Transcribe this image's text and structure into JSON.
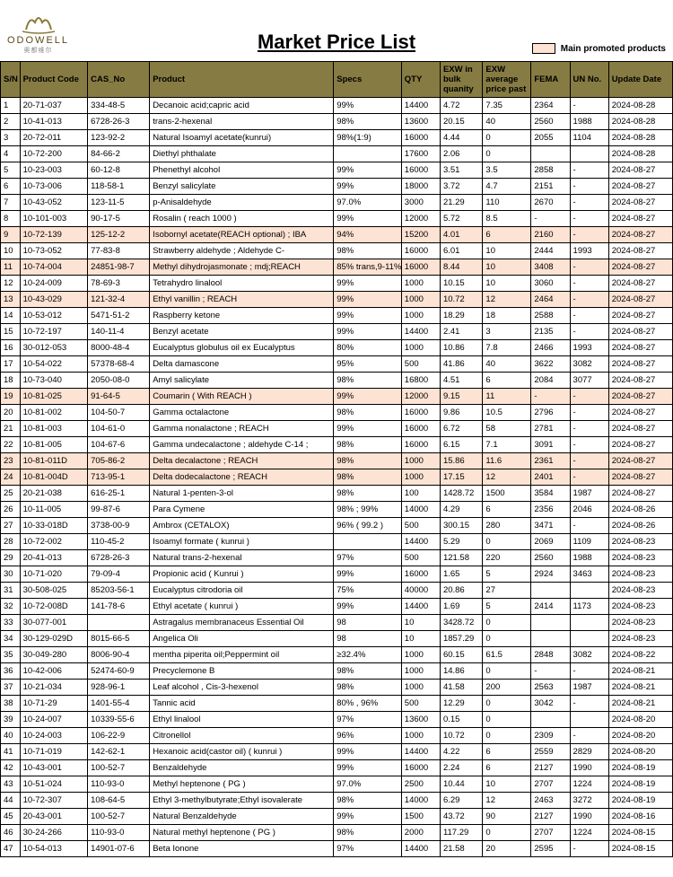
{
  "brand": {
    "name": "ODOWELL",
    "sub": "奥都维尔"
  },
  "page": {
    "title": "Market Price List",
    "legend": "Main promoted products"
  },
  "colors": {
    "header_bg": "#867b42",
    "promoted_bg": "#fde3d3",
    "border": "#000000"
  },
  "columns": [
    "S/N",
    "Product Code",
    "CAS_No",
    "Product",
    "Specs",
    "QTY",
    "EXW in bulk quanity",
    "EXW average price past",
    "FEMA",
    "UN No.",
    "Update Date"
  ],
  "rows": [
    {
      "sn": "1",
      "code": "20-71-037",
      "cas": "334-48-5",
      "prod": "Decanoic acid;capric acid",
      "spec": "99%",
      "qty": "14400",
      "exwb": "4.72",
      "exwa": "7.35",
      "fema": "2364",
      "un": "-",
      "upd": "2024-08-28",
      "hl": false
    },
    {
      "sn": "2",
      "code": "10-41-013",
      "cas": "6728-26-3",
      "prod": "trans-2-hexenal",
      "spec": "98%",
      "qty": "13600",
      "exwb": "20.15",
      "exwa": "40",
      "fema": "2560",
      "un": "1988",
      "upd": "2024-08-28",
      "hl": false
    },
    {
      "sn": "3",
      "code": "20-72-011",
      "cas": "123-92-2",
      "prod": "Natural Isoamyl acetate(kunrui)",
      "spec": "98%(1:9)",
      "qty": "16000",
      "exwb": "4.44",
      "exwa": "0",
      "fema": "2055",
      "un": "1104",
      "upd": "2024-08-28",
      "hl": false
    },
    {
      "sn": "4",
      "code": "10-72-200",
      "cas": "84-66-2",
      "prod": "Diethyl phthalate",
      "spec": "",
      "qty": "17600",
      "exwb": "2.06",
      "exwa": "0",
      "fema": "",
      "un": "",
      "upd": "2024-08-28",
      "hl": false
    },
    {
      "sn": "5",
      "code": "10-23-003",
      "cas": "60-12-8",
      "prod": "Phenethyl alcohol",
      "spec": "99%",
      "qty": "16000",
      "exwb": "3.51",
      "exwa": "3.5",
      "fema": "2858",
      "un": "-",
      "upd": "2024-08-27",
      "hl": false
    },
    {
      "sn": "6",
      "code": "10-73-006",
      "cas": "118-58-1",
      "prod": "Benzyl salicylate",
      "spec": "99%",
      "qty": "18000",
      "exwb": "3.72",
      "exwa": "4.7",
      "fema": "2151",
      "un": "-",
      "upd": "2024-08-27",
      "hl": false
    },
    {
      "sn": "7",
      "code": "10-43-052",
      "cas": "123-11-5",
      "prod": "p-Anisaldehyde",
      "spec": "97.0%",
      "qty": "3000",
      "exwb": "21.29",
      "exwa": "110",
      "fema": "2670",
      "un": "-",
      "upd": "2024-08-27",
      "hl": false
    },
    {
      "sn": "8",
      "code": "10-101-003",
      "cas": "90-17-5",
      "prod": "Rosalin ( reach 1000 )",
      "spec": "99%",
      "qty": "12000",
      "exwb": "5.72",
      "exwa": "8.5",
      "fema": "-",
      "un": "-",
      "upd": "2024-08-27",
      "hl": false
    },
    {
      "sn": "9",
      "code": "10-72-139",
      "cas": "125-12-2",
      "prod": "Isobornyl acetate(REACH optional) ; IBA",
      "spec": "94%",
      "qty": "15200",
      "exwb": "4.01",
      "exwa": "6",
      "fema": "2160",
      "un": "-",
      "upd": "2024-08-27",
      "hl": true
    },
    {
      "sn": "10",
      "code": "10-73-052",
      "cas": "77-83-8",
      "prod": "Strawberry aldehyde ; Aldehyde C-",
      "spec": "98%",
      "qty": "16000",
      "exwb": "6.01",
      "exwa": "10",
      "fema": "2444",
      "un": "1993",
      "upd": "2024-08-27",
      "hl": false
    },
    {
      "sn": "11",
      "code": "10-74-004",
      "cas": "24851-98-7",
      "prod": "Methyl dihydrojasmonate ; mdj;REACH",
      "spec": "85% trans,9-11%",
      "qty": "16000",
      "exwb": "8.44",
      "exwa": "10",
      "fema": "3408",
      "un": "-",
      "upd": "2024-08-27",
      "hl": true
    },
    {
      "sn": "12",
      "code": "10-24-009",
      "cas": "78-69-3",
      "prod": "Tetrahydro linalool",
      "spec": "99%",
      "qty": "1000",
      "exwb": "10.15",
      "exwa": "10",
      "fema": "3060",
      "un": "-",
      "upd": "2024-08-27",
      "hl": false
    },
    {
      "sn": "13",
      "code": "10-43-029",
      "cas": "121-32-4",
      "prod": "Ethyl vanillin ; REACH",
      "spec": "99%",
      "qty": "1000",
      "exwb": "10.72",
      "exwa": "12",
      "fema": "2464",
      "un": "-",
      "upd": "2024-08-27",
      "hl": true
    },
    {
      "sn": "14",
      "code": "10-53-012",
      "cas": "5471-51-2",
      "prod": "Raspberry ketone",
      "spec": "99%",
      "qty": "1000",
      "exwb": "18.29",
      "exwa": "18",
      "fema": "2588",
      "un": "-",
      "upd": "2024-08-27",
      "hl": false
    },
    {
      "sn": "15",
      "code": "10-72-197",
      "cas": "140-11-4",
      "prod": "Benzyl acetate",
      "spec": "99%",
      "qty": "14400",
      "exwb": "2.41",
      "exwa": "3",
      "fema": "2135",
      "un": "-",
      "upd": "2024-08-27",
      "hl": false
    },
    {
      "sn": "16",
      "code": "30-012-053",
      "cas": "8000-48-4",
      "prod": "Eucalyptus globulus oil ex Eucalyptus",
      "spec": "80%",
      "qty": "1000",
      "exwb": "10.86",
      "exwa": "7.8",
      "fema": "2466",
      "un": "1993",
      "upd": "2024-08-27",
      "hl": false
    },
    {
      "sn": "17",
      "code": "10-54-022",
      "cas": "57378-68-4",
      "prod": "Delta damascone",
      "spec": "95%",
      "qty": "500",
      "exwb": "41.86",
      "exwa": "40",
      "fema": "3622",
      "un": "3082",
      "upd": "2024-08-27",
      "hl": false
    },
    {
      "sn": "18",
      "code": "10-73-040",
      "cas": "2050-08-0",
      "prod": "Amyl salicylate",
      "spec": "98%",
      "qty": "16800",
      "exwb": "4.51",
      "exwa": "6",
      "fema": "2084",
      "un": "3077",
      "upd": "2024-08-27",
      "hl": false
    },
    {
      "sn": "19",
      "code": "10-81-025",
      "cas": "91-64-5",
      "prod": "Coumarin ( With REACH )",
      "spec": "99%",
      "qty": "12000",
      "exwb": "9.15",
      "exwa": "11",
      "fema": "-",
      "un": "-",
      "upd": "2024-08-27",
      "hl": true
    },
    {
      "sn": "20",
      "code": "10-81-002",
      "cas": "104-50-7",
      "prod": "Gamma octalactone",
      "spec": "98%",
      "qty": "16000",
      "exwb": "9.86",
      "exwa": "10.5",
      "fema": "2796",
      "un": "-",
      "upd": "2024-08-27",
      "hl": false
    },
    {
      "sn": "21",
      "code": "10-81-003",
      "cas": "104-61-0",
      "prod": "Gamma nonalactone ; REACH",
      "spec": "99%",
      "qty": "16000",
      "exwb": "6.72",
      "exwa": "58",
      "fema": "2781",
      "un": "-",
      "upd": "2024-08-27",
      "hl": false
    },
    {
      "sn": "22",
      "code": "10-81-005",
      "cas": "104-67-6",
      "prod": "Gamma undecalactone ; aldehyde C-14 ;",
      "spec": "98%",
      "qty": "16000",
      "exwb": "6.15",
      "exwa": "7.1",
      "fema": "3091",
      "un": "-",
      "upd": "2024-08-27",
      "hl": false
    },
    {
      "sn": "23",
      "code": "10-81-011D",
      "cas": "705-86-2",
      "prod": "Delta decalactone ; REACH",
      "spec": "98%",
      "qty": "1000",
      "exwb": "15.86",
      "exwa": "11.6",
      "fema": "2361",
      "un": "-",
      "upd": "2024-08-27",
      "hl": true
    },
    {
      "sn": "24",
      "code": "10-81-004D",
      "cas": "713-95-1",
      "prod": "Delta dodecalactone ; REACH",
      "spec": "98%",
      "qty": "1000",
      "exwb": "17.15",
      "exwa": "12",
      "fema": "2401",
      "un": "-",
      "upd": "2024-08-27",
      "hl": true
    },
    {
      "sn": "25",
      "code": "20-21-038",
      "cas": "616-25-1",
      "prod": "Natural 1-penten-3-ol",
      "spec": "98%",
      "qty": "100",
      "exwb": "1428.72",
      "exwa": "1500",
      "fema": "3584",
      "un": "1987",
      "upd": "2024-08-27",
      "hl": false
    },
    {
      "sn": "26",
      "code": "10-11-005",
      "cas": "99-87-6",
      "prod": "Para Cymene",
      "spec": "98% ; 99%",
      "qty": "14000",
      "exwb": "4.29",
      "exwa": "6",
      "fema": "2356",
      "un": "2046",
      "upd": "2024-08-26",
      "hl": false
    },
    {
      "sn": "27",
      "code": "10-33-018D",
      "cas": "3738-00-9",
      "prod": "Ambrox (CETALOX)",
      "spec": "96% ( 99.2 )",
      "qty": "500",
      "exwb": "300.15",
      "exwa": "280",
      "fema": "3471",
      "un": "-",
      "upd": "2024-08-26",
      "hl": false
    },
    {
      "sn": "28",
      "code": "10-72-002",
      "cas": "110-45-2",
      "prod": "Isoamyl formate ( kunrui )",
      "spec": "",
      "qty": "14400",
      "exwb": "5.29",
      "exwa": "0",
      "fema": "2069",
      "un": "1109",
      "upd": "2024-08-23",
      "hl": false
    },
    {
      "sn": "29",
      "code": "20-41-013",
      "cas": "6728-26-3",
      "prod": "Natural trans-2-hexenal",
      "spec": "97%",
      "qty": "500",
      "exwb": "121.58",
      "exwa": "220",
      "fema": "2560",
      "un": "1988",
      "upd": "2024-08-23",
      "hl": false
    },
    {
      "sn": "30",
      "code": "10-71-020",
      "cas": "79-09-4",
      "prod": "Propionic acid ( Kunrui )",
      "spec": "99%",
      "qty": "16000",
      "exwb": "1.65",
      "exwa": "5",
      "fema": "2924",
      "un": "3463",
      "upd": "2024-08-23",
      "hl": false
    },
    {
      "sn": "31",
      "code": "30-508-025",
      "cas": "85203-56-1",
      "prod": "Eucalyptus citrodoria oil",
      "spec": "75%",
      "qty": "40000",
      "exwb": "20.86",
      "exwa": "27",
      "fema": "",
      "un": "",
      "upd": "2024-08-23",
      "hl": false
    },
    {
      "sn": "32",
      "code": "10-72-008D",
      "cas": "141-78-6",
      "prod": "Ethyl acetate ( kunrui )",
      "spec": "99%",
      "qty": "14400",
      "exwb": "1.69",
      "exwa": "5",
      "fema": "2414",
      "un": "1173",
      "upd": "2024-08-23",
      "hl": false
    },
    {
      "sn": "33",
      "code": "30-077-001",
      "cas": "",
      "prod": "Astragalus membranaceus Essential Oil",
      "spec": "98",
      "qty": "10",
      "exwb": "3428.72",
      "exwa": "0",
      "fema": "",
      "un": "",
      "upd": "2024-08-23",
      "hl": false
    },
    {
      "sn": "34",
      "code": "30-129-029D",
      "cas": "8015-66-5",
      "prod": "Angelica Oli",
      "spec": "98",
      "qty": "10",
      "exwb": "1857.29",
      "exwa": "0",
      "fema": "",
      "un": "",
      "upd": "2024-08-23",
      "hl": false
    },
    {
      "sn": "35",
      "code": "30-049-280",
      "cas": "8006-90-4",
      "prod": "mentha piperita oil;Peppermint oil",
      "spec": "≥32.4%",
      "qty": "1000",
      "exwb": "60.15",
      "exwa": "61.5",
      "fema": "2848",
      "un": "3082",
      "upd": "2024-08-22",
      "hl": false
    },
    {
      "sn": "36",
      "code": "10-42-006",
      "cas": "52474-60-9",
      "prod": "Precyclemone B",
      "spec": "98%",
      "qty": "1000",
      "exwb": "14.86",
      "exwa": "0",
      "fema": "-",
      "un": "-",
      "upd": "2024-08-21",
      "hl": false
    },
    {
      "sn": "37",
      "code": "10-21-034",
      "cas": "928-96-1",
      "prod": "Leaf alcohol , Cis-3-hexenol",
      "spec": "98%",
      "qty": "1000",
      "exwb": "41.58",
      "exwa": "200",
      "fema": "2563",
      "un": "1987",
      "upd": "2024-08-21",
      "hl": false
    },
    {
      "sn": "38",
      "code": "10-71-29",
      "cas": "1401-55-4",
      "prod": "Tannic acid",
      "spec": "80% , 96%",
      "qty": "500",
      "exwb": "12.29",
      "exwa": "0",
      "fema": "3042",
      "un": "-",
      "upd": "2024-08-21",
      "hl": false
    },
    {
      "sn": "39",
      "code": "10-24-007",
      "cas": "10339-55-6",
      "prod": "Ethyl linalool",
      "spec": "97%",
      "qty": "13600",
      "exwb": "0.15",
      "exwa": "0",
      "fema": "",
      "un": "",
      "upd": "2024-08-20",
      "hl": false
    },
    {
      "sn": "40",
      "code": "10-24-003",
      "cas": "106-22-9",
      "prod": "Citronellol",
      "spec": "96%",
      "qty": "1000",
      "exwb": "10.72",
      "exwa": "0",
      "fema": "2309",
      "un": "-",
      "upd": "2024-08-20",
      "hl": false
    },
    {
      "sn": "41",
      "code": "10-71-019",
      "cas": "142-62-1",
      "prod": "Hexanoic acid(castor oil) ( kunrui )",
      "spec": "99%",
      "qty": "14400",
      "exwb": "4.22",
      "exwa": "6",
      "fema": "2559",
      "un": "2829",
      "upd": "2024-08-20",
      "hl": false
    },
    {
      "sn": "42",
      "code": "10-43-001",
      "cas": "100-52-7",
      "prod": "Benzaldehyde",
      "spec": "99%",
      "qty": "16000",
      "exwb": "2.24",
      "exwa": "6",
      "fema": "2127",
      "un": "1990",
      "upd": "2024-08-19",
      "hl": false
    },
    {
      "sn": "43",
      "code": "10-51-024",
      "cas": "110-93-0",
      "prod": "Methyl heptenone ( PG )",
      "spec": "97.0%",
      "qty": "2500",
      "exwb": "10.44",
      "exwa": "10",
      "fema": "2707",
      "un": "1224",
      "upd": "2024-08-19",
      "hl": false
    },
    {
      "sn": "44",
      "code": "10-72-307",
      "cas": "108-64-5",
      "prod": "Ethyl 3-methylbutyrate;Ethyl isovalerate",
      "spec": "98%",
      "qty": "14000",
      "exwb": "6.29",
      "exwa": "12",
      "fema": "2463",
      "un": "3272",
      "upd": "2024-08-19",
      "hl": false
    },
    {
      "sn": "45",
      "code": "20-43-001",
      "cas": "100-52-7",
      "prod": "Natural Benzaldehyde",
      "spec": "99%",
      "qty": "1500",
      "exwb": "43.72",
      "exwa": "90",
      "fema": "2127",
      "un": "1990",
      "upd": "2024-08-16",
      "hl": false
    },
    {
      "sn": "46",
      "code": "30-24-266",
      "cas": "110-93-0",
      "prod": "Natural methyl heptenone ( PG )",
      "spec": "98%",
      "qty": "2000",
      "exwb": "117.29",
      "exwa": "0",
      "fema": "2707",
      "un": "1224",
      "upd": "2024-08-15",
      "hl": false
    },
    {
      "sn": "47",
      "code": "10-54-013",
      "cas": "14901-07-6",
      "prod": "Beta Ionone",
      "spec": "97%",
      "qty": "14400",
      "exwb": "21.58",
      "exwa": "20",
      "fema": "2595",
      "un": "-",
      "upd": "2024-08-15",
      "hl": false
    }
  ]
}
